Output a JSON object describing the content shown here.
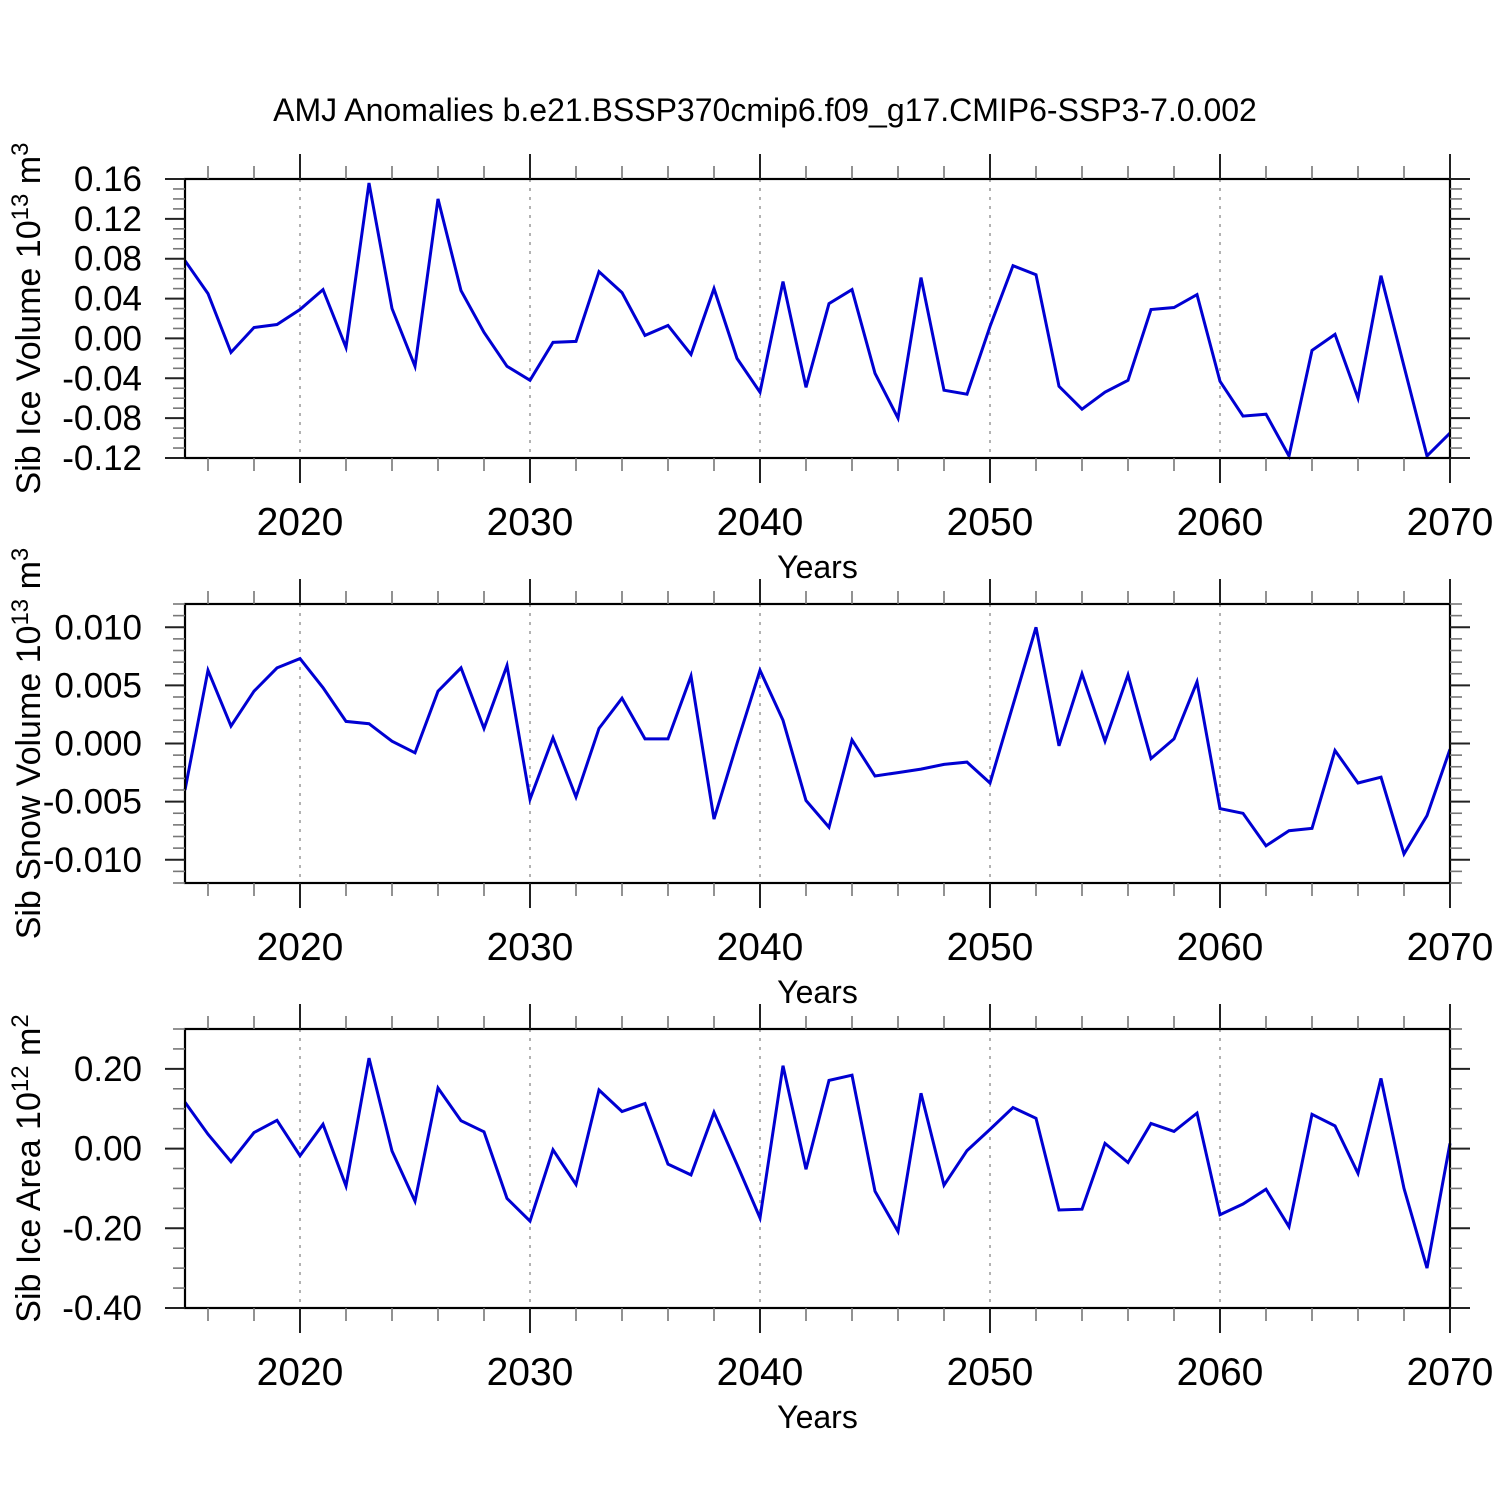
{
  "title": "AMJ Anomalies b.e21.BSSP370cmip6.f09_g17.CMIP6-SSP3-7.0.002",
  "colors": {
    "line": "#0000D2",
    "frame": "#000000",
    "major_tick": "#222222",
    "minor_tick": "#777777",
    "grid": "#999999",
    "background": "#ffffff"
  },
  "years": [
    2015,
    2016,
    2017,
    2018,
    2019,
    2020,
    2021,
    2022,
    2023,
    2024,
    2025,
    2026,
    2027,
    2028,
    2029,
    2030,
    2031,
    2032,
    2033,
    2034,
    2035,
    2036,
    2037,
    2038,
    2039,
    2040,
    2041,
    2042,
    2043,
    2044,
    2045,
    2046,
    2047,
    2048,
    2049,
    2050,
    2051,
    2052,
    2053,
    2054,
    2055,
    2056,
    2057,
    2058,
    2059,
    2060,
    2061,
    2062,
    2063,
    2064,
    2065,
    2066,
    2067,
    2068,
    2069,
    2070
  ],
  "chart_data": [
    {
      "type": "line",
      "name": "sib-ice-volume-anomaly",
      "ylabel_plain": "Sib Ice Volume 10^13 m^3",
      "ylabel_segments": [
        {
          "t": "Sib Ice Volume 10"
        },
        {
          "t": "13",
          "sup": true
        },
        {
          "t": " m"
        },
        {
          "t": "3",
          "sup": true
        }
      ],
      "xlabel": "Years",
      "xlim": [
        2015,
        2070
      ],
      "ylim": [
        -0.12,
        0.16
      ],
      "yticks": [
        {
          "v": 0.16,
          "label": "0.16"
        },
        {
          "v": 0.12,
          "label": "0.12"
        },
        {
          "v": 0.08,
          "label": "0.08"
        },
        {
          "v": 0.04,
          "label": "0.04"
        },
        {
          "v": 0.0,
          "label": "0.00"
        },
        {
          "v": -0.04,
          "label": "-0.04"
        },
        {
          "v": -0.08,
          "label": "-0.08"
        },
        {
          "v": -0.12,
          "label": "-0.12"
        }
      ],
      "yminor_step": 0.01,
      "xticks": [
        {
          "v": 2020,
          "label": "2020"
        },
        {
          "v": 2030,
          "label": "2030"
        },
        {
          "v": 2040,
          "label": "2040"
        },
        {
          "v": 2050,
          "label": "2050"
        },
        {
          "v": 2060,
          "label": "2060"
        },
        {
          "v": 2070,
          "label": "2070"
        }
      ],
      "xminor_step": 2,
      "grid_years": [
        2020,
        2030,
        2040,
        2050,
        2060
      ],
      "grid_on": true,
      "legend": "none",
      "values": [
        0.078,
        0.045,
        -0.014,
        0.011,
        0.014,
        0.029,
        0.049,
        -0.009,
        0.156,
        0.03,
        -0.028,
        0.14,
        0.048,
        0.006,
        -0.028,
        -0.042,
        -0.004,
        -0.003,
        0.067,
        0.046,
        0.003,
        0.013,
        -0.016,
        0.05,
        -0.02,
        -0.054,
        0.057,
        -0.049,
        0.035,
        0.049,
        -0.035,
        -0.08,
        0.061,
        -0.052,
        -0.056,
        0.012,
        0.073,
        0.064,
        -0.048,
        -0.071,
        -0.054,
        -0.042,
        0.029,
        0.031,
        0.044,
        -0.043,
        -0.078,
        -0.076,
        -0.118,
        -0.012,
        0.004,
        -0.06,
        0.063,
        -0.028,
        -0.118,
        -0.095
      ]
    },
    {
      "type": "line",
      "name": "sib-snow-volume-anomaly",
      "ylabel_plain": "Sib Snow Volume 10^13 m^3",
      "ylabel_segments": [
        {
          "t": "Sib Snow Volume 10"
        },
        {
          "t": "13",
          "sup": true
        },
        {
          "t": " m"
        },
        {
          "t": "3",
          "sup": true
        }
      ],
      "xlabel": "Years",
      "xlim": [
        2015,
        2070
      ],
      "ylim": [
        -0.012,
        0.012
      ],
      "yticks": [
        {
          "v": 0.01,
          "label": "0.010"
        },
        {
          "v": 0.005,
          "label": "0.005"
        },
        {
          "v": 0.0,
          "label": "0.000"
        },
        {
          "v": -0.005,
          "label": "-0.005"
        },
        {
          "v": -0.01,
          "label": "-0.010"
        }
      ],
      "yminor_step": 0.001,
      "xticks": [
        {
          "v": 2020,
          "label": "2020"
        },
        {
          "v": 2030,
          "label": "2030"
        },
        {
          "v": 2040,
          "label": "2040"
        },
        {
          "v": 2050,
          "label": "2050"
        },
        {
          "v": 2060,
          "label": "2060"
        },
        {
          "v": 2070,
          "label": "2070"
        }
      ],
      "xminor_step": 2,
      "grid_years": [
        2020,
        2030,
        2040,
        2050,
        2060
      ],
      "grid_on": true,
      "legend": "none",
      "values": [
        -0.004,
        0.0063,
        0.0015,
        0.0045,
        0.0065,
        0.0073,
        0.0048,
        0.0019,
        0.0017,
        0.0002,
        -0.0008,
        0.0045,
        0.0065,
        0.0013,
        0.0067,
        -0.0048,
        0.0005,
        -0.0046,
        0.0013,
        0.0039,
        0.0004,
        0.0004,
        0.0058,
        -0.0065,
        0.0,
        0.0063,
        0.002,
        -0.0049,
        -0.0072,
        0.0003,
        -0.0028,
        -0.0025,
        -0.0022,
        -0.0018,
        -0.0016,
        -0.0034,
        0.0033,
        0.01,
        -0.0002,
        0.006,
        0.0002,
        0.0059,
        -0.0013,
        0.0004,
        0.0053,
        -0.0056,
        -0.006,
        -0.0088,
        -0.0075,
        -0.0073,
        -0.0006,
        -0.0034,
        -0.0029,
        -0.0095,
        -0.0062,
        -0.0005
      ]
    },
    {
      "type": "line",
      "name": "sib-ice-area-anomaly",
      "ylabel_plain": "Sib Ice Area 10^12 m^2",
      "ylabel_segments": [
        {
          "t": "Sib Ice Area 10"
        },
        {
          "t": "12",
          "sup": true
        },
        {
          "t": " m"
        },
        {
          "t": "2",
          "sup": true
        }
      ],
      "xlabel": "Years",
      "xlim": [
        2015,
        2070
      ],
      "ylim": [
        -0.4,
        0.3
      ],
      "yticks": [
        {
          "v": 0.2,
          "label": "0.20"
        },
        {
          "v": 0.0,
          "label": "0.00"
        },
        {
          "v": -0.2,
          "label": "-0.20"
        },
        {
          "v": -0.4,
          "label": "-0.40"
        }
      ],
      "yminor_step": 0.05,
      "xticks": [
        {
          "v": 2020,
          "label": "2020"
        },
        {
          "v": 2030,
          "label": "2030"
        },
        {
          "v": 2040,
          "label": "2040"
        },
        {
          "v": 2050,
          "label": "2050"
        },
        {
          "v": 2060,
          "label": "2060"
        },
        {
          "v": 2070,
          "label": "2070"
        }
      ],
      "xminor_step": 2,
      "grid_years": [
        2020,
        2030,
        2040,
        2050,
        2060
      ],
      "grid_on": true,
      "legend": "none",
      "values": [
        0.116,
        0.036,
        -0.033,
        0.04,
        0.071,
        -0.018,
        0.061,
        -0.094,
        0.227,
        -0.006,
        -0.132,
        0.152,
        0.07,
        0.042,
        -0.125,
        -0.182,
        -0.003,
        -0.09,
        0.147,
        0.093,
        0.113,
        -0.039,
        -0.066,
        0.091,
        -0.04,
        -0.174,
        0.208,
        -0.052,
        0.171,
        0.184,
        -0.107,
        -0.208,
        0.139,
        -0.092,
        -0.005,
        0.048,
        0.103,
        0.076,
        -0.154,
        -0.152,
        0.013,
        -0.035,
        0.063,
        0.043,
        0.089,
        -0.166,
        -0.139,
        -0.102,
        -0.196,
        0.086,
        0.057,
        -0.062,
        0.176,
        -0.1,
        -0.3,
        0.013
      ]
    }
  ]
}
